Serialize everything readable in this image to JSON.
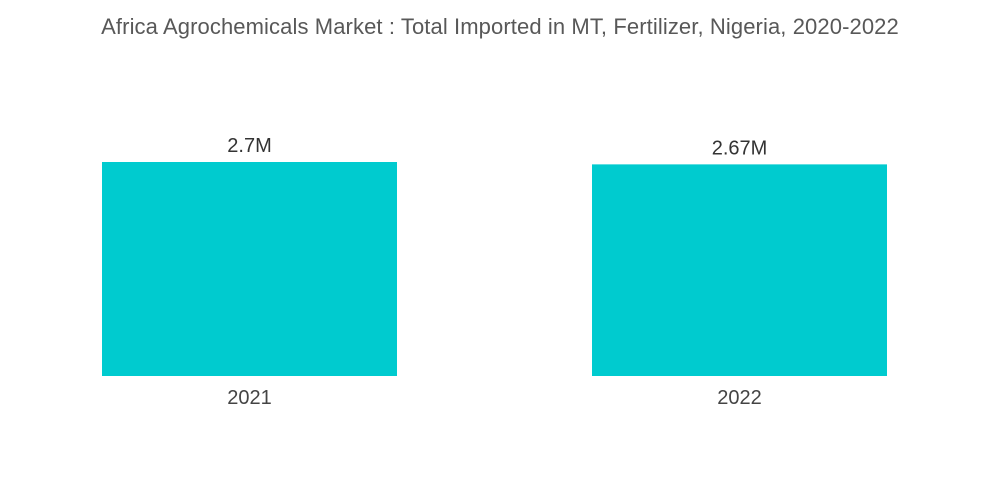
{
  "chart_data": {
    "type": "bar",
    "title": "Africa Agrochemicals Market : Total Imported  in MT, Fertilizer, Nigeria, 2020-2022",
    "categories": [
      "2021",
      "2022"
    ],
    "values": [
      2700000,
      2670000
    ],
    "value_labels": [
      "2.7M",
      "2.67M"
    ],
    "xlabel": "",
    "ylabel": "",
    "ylim": [
      0,
      2700000
    ],
    "grid": false,
    "legend": "none",
    "bar_color": "#00CBCF"
  }
}
